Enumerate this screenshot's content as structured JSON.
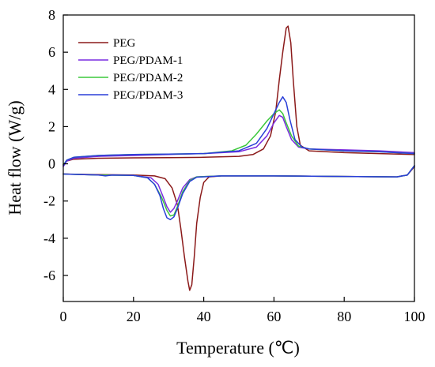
{
  "chart_data": {
    "type": "line",
    "xlabel": "Temperature (℃)",
    "ylabel": "Heat flow (W/g)",
    "xlim": [
      0,
      100
    ],
    "ylim": [
      -7.4,
      8
    ],
    "xticks": [
      0,
      20,
      40,
      60,
      80,
      100
    ],
    "yticks": [
      -6,
      -4,
      -2,
      0,
      2,
      4,
      6,
      8
    ],
    "grid": false,
    "legend": "top-left",
    "series": [
      {
        "name": "PEG",
        "color": "#8b1a1a",
        "heating": [
          [
            0,
            -0.05
          ],
          [
            1,
            0.15
          ],
          [
            3,
            0.25
          ],
          [
            10,
            0.3
          ],
          [
            20,
            0.32
          ],
          [
            30,
            0.33
          ],
          [
            40,
            0.35
          ],
          [
            50,
            0.4
          ],
          [
            54,
            0.5
          ],
          [
            57,
            0.8
          ],
          [
            59,
            1.5
          ],
          [
            60.5,
            2.8
          ],
          [
            61.5,
            4.5
          ],
          [
            62.5,
            6.0
          ],
          [
            63.5,
            7.3
          ],
          [
            64,
            7.4
          ],
          [
            64.8,
            6.5
          ],
          [
            65.5,
            4.5
          ],
          [
            66.5,
            2.0
          ],
          [
            67.5,
            1.0
          ],
          [
            70,
            0.7
          ],
          [
            80,
            0.6
          ],
          [
            90,
            0.55
          ],
          [
            100,
            0.5
          ]
        ],
        "cooling": [
          [
            0,
            -0.55
          ],
          [
            10,
            -0.58
          ],
          [
            20,
            -0.6
          ],
          [
            26,
            -0.65
          ],
          [
            29,
            -0.8
          ],
          [
            31,
            -1.3
          ],
          [
            32.5,
            -2.2
          ],
          [
            33.5,
            -3.5
          ],
          [
            34.5,
            -5.0
          ],
          [
            35.5,
            -6.3
          ],
          [
            36,
            -6.8
          ],
          [
            36.6,
            -6.5
          ],
          [
            37.3,
            -5.0
          ],
          [
            38,
            -3.2
          ],
          [
            39,
            -1.8
          ],
          [
            40,
            -1.0
          ],
          [
            41.5,
            -0.7
          ],
          [
            45,
            -0.65
          ],
          [
            60,
            -0.65
          ],
          [
            80,
            -0.68
          ],
          [
            95,
            -0.7
          ],
          [
            98,
            -0.6
          ],
          [
            100,
            -0.15
          ]
        ]
      },
      {
        "name": "PEG/PDAM-1",
        "color": "#7a2be0",
        "heating": [
          [
            0,
            -0.15
          ],
          [
            1,
            0.15
          ],
          [
            3,
            0.3
          ],
          [
            10,
            0.4
          ],
          [
            20,
            0.45
          ],
          [
            30,
            0.5
          ],
          [
            40,
            0.55
          ],
          [
            50,
            0.65
          ],
          [
            55,
            0.9
          ],
          [
            58,
            1.5
          ],
          [
            60,
            2.2
          ],
          [
            61.5,
            2.6
          ],
          [
            62.5,
            2.5
          ],
          [
            63.5,
            2.0
          ],
          [
            65,
            1.3
          ],
          [
            67,
            0.9
          ],
          [
            70,
            0.8
          ],
          [
            80,
            0.75
          ],
          [
            90,
            0.7
          ],
          [
            100,
            0.6
          ]
        ],
        "cooling": [
          [
            0,
            -0.55
          ],
          [
            10,
            -0.6
          ],
          [
            20,
            -0.62
          ],
          [
            25,
            -0.75
          ],
          [
            27,
            -1.1
          ],
          [
            28.5,
            -1.8
          ],
          [
            29.5,
            -2.3
          ],
          [
            30.5,
            -2.6
          ],
          [
            31.5,
            -2.4
          ],
          [
            32.5,
            -2.0
          ],
          [
            34,
            -1.3
          ],
          [
            36,
            -0.85
          ],
          [
            38,
            -0.7
          ],
          [
            45,
            -0.65
          ],
          [
            60,
            -0.65
          ],
          [
            80,
            -0.68
          ],
          [
            95,
            -0.7
          ],
          [
            98,
            -0.6
          ],
          [
            100,
            -0.1
          ]
        ]
      },
      {
        "name": "PEG/PDAM-2",
        "color": "#3cc83c",
        "heating": [
          [
            0,
            -0.05
          ],
          [
            1,
            0.2
          ],
          [
            3,
            0.35
          ],
          [
            10,
            0.45
          ],
          [
            20,
            0.5
          ],
          [
            30,
            0.52
          ],
          [
            40,
            0.55
          ],
          [
            48,
            0.7
          ],
          [
            52,
            1.0
          ],
          [
            55,
            1.6
          ],
          [
            58,
            2.3
          ],
          [
            60,
            2.7
          ],
          [
            61.5,
            2.9
          ],
          [
            62.5,
            2.7
          ],
          [
            63.5,
            2.2
          ],
          [
            65,
            1.5
          ],
          [
            67,
            0.95
          ],
          [
            70,
            0.8
          ],
          [
            80,
            0.7
          ],
          [
            90,
            0.65
          ],
          [
            100,
            0.55
          ]
        ],
        "cooling": [
          [
            0,
            -0.55
          ],
          [
            10,
            -0.6
          ],
          [
            20,
            -0.62
          ],
          [
            24,
            -0.75
          ],
          [
            26,
            -1.1
          ],
          [
            28,
            -1.8
          ],
          [
            29.5,
            -2.5
          ],
          [
            30.5,
            -2.8
          ],
          [
            31.5,
            -2.75
          ],
          [
            32.5,
            -2.3
          ],
          [
            34,
            -1.5
          ],
          [
            36,
            -0.9
          ],
          [
            38,
            -0.7
          ],
          [
            45,
            -0.65
          ],
          [
            60,
            -0.65
          ],
          [
            80,
            -0.68
          ],
          [
            95,
            -0.7
          ],
          [
            98,
            -0.6
          ],
          [
            100,
            -0.1
          ]
        ]
      },
      {
        "name": "PEG/PDAM-3",
        "color": "#2a3fd8",
        "heating": [
          [
            0,
            -0.1
          ],
          [
            1,
            0.2
          ],
          [
            3,
            0.35
          ],
          [
            10,
            0.45
          ],
          [
            20,
            0.5
          ],
          [
            30,
            0.52
          ],
          [
            40,
            0.55
          ],
          [
            50,
            0.7
          ],
          [
            55,
            1.1
          ],
          [
            58,
            1.9
          ],
          [
            60,
            2.7
          ],
          [
            61.5,
            3.3
          ],
          [
            62.5,
            3.6
          ],
          [
            63.5,
            3.3
          ],
          [
            64.5,
            2.4
          ],
          [
            66,
            1.3
          ],
          [
            68,
            0.9
          ],
          [
            70,
            0.8
          ],
          [
            80,
            0.7
          ],
          [
            90,
            0.65
          ],
          [
            100,
            0.55
          ]
        ],
        "cooling": [
          [
            0,
            -0.55
          ],
          [
            10,
            -0.6
          ],
          [
            12,
            -0.65
          ],
          [
            14,
            -0.6
          ],
          [
            20,
            -0.62
          ],
          [
            24,
            -0.75
          ],
          [
            26,
            -1.1
          ],
          [
            27.5,
            -1.7
          ],
          [
            28.5,
            -2.4
          ],
          [
            29.5,
            -2.9
          ],
          [
            30.5,
            -3.0
          ],
          [
            31.5,
            -2.85
          ],
          [
            32.5,
            -2.4
          ],
          [
            34,
            -1.6
          ],
          [
            36,
            -0.95
          ],
          [
            38,
            -0.72
          ],
          [
            45,
            -0.65
          ],
          [
            60,
            -0.65
          ],
          [
            80,
            -0.68
          ],
          [
            95,
            -0.7
          ],
          [
            98,
            -0.6
          ],
          [
            100,
            -0.1
          ]
        ]
      }
    ]
  }
}
